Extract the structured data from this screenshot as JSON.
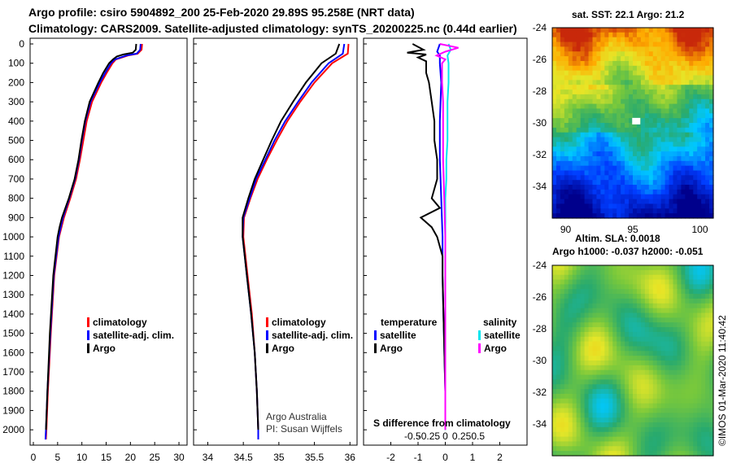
{
  "header": {
    "title_line1": "Argo profile: csiro 5904892_200 25-Feb-2020 29.89S 95.258E (NRT data)",
    "title_line2": "Climatology: CARS2009. Satellite-adjusted climatology: synTS_20200225.nc (0.44d earlier)"
  },
  "colors": {
    "climatology": "#ff0000",
    "satellite_adj": "#0000ff",
    "argo": "#000000",
    "salinity_satellite": "#00e5ee",
    "salinity_argo": "#ff00ff"
  },
  "legend": {
    "climatology": "climatology",
    "satellite_adj": "satellite-adj. clim.",
    "argo": "Argo",
    "temperature_header": "temperature",
    "salinity_header": "salinity",
    "satellite": "satellite"
  },
  "chart_data": [
    {
      "type": "line",
      "name": "temperature",
      "xlim": [
        0,
        31
      ],
      "ylim": [
        2050,
        0
      ],
      "x_ticks": [
        0,
        5,
        10,
        15,
        20,
        25,
        30
      ],
      "y_ticks": [
        0,
        100,
        200,
        300,
        400,
        500,
        600,
        700,
        800,
        900,
        1000,
        1100,
        1200,
        1300,
        1400,
        1500,
        1600,
        1700,
        1800,
        1900,
        2000
      ],
      "xlabel": "",
      "ylabel": "",
      "series": [
        {
          "name": "climatology",
          "color_key": "climatology",
          "depth": [
            0,
            30,
            50,
            60,
            80,
            100,
            150,
            200,
            300,
            400,
            500,
            600,
            700,
            800,
            900,
            1000,
            1200,
            1500,
            1800,
            2000,
            2050
          ],
          "values": [
            22.4,
            22.3,
            21.5,
            19.5,
            17.0,
            16.3,
            15.1,
            14.0,
            12.1,
            11.0,
            10.3,
            9.6,
            8.8,
            7.6,
            6.3,
            5.3,
            4.3,
            3.6,
            3.0,
            2.7,
            2.6
          ]
        },
        {
          "name": "satellite-adj. clim.",
          "color_key": "satellite_adj",
          "depth": [
            0,
            30,
            50,
            60,
            80,
            100,
            150,
            200,
            300,
            400,
            500,
            600,
            700,
            800,
            900,
            1000,
            1200,
            1500,
            1800,
            2000,
            2050
          ],
          "values": [
            22.1,
            22.0,
            21.3,
            19.2,
            16.8,
            16.0,
            14.8,
            13.7,
            11.8,
            10.7,
            10.0,
            9.4,
            8.6,
            7.4,
            6.1,
            5.2,
            4.2,
            3.5,
            2.9,
            2.6,
            2.5
          ]
        },
        {
          "name": "Argo",
          "color_key": "argo",
          "depth": [
            0,
            30,
            45,
            55,
            65,
            80,
            100,
            150,
            200,
            300,
            400,
            500,
            600,
            700,
            800,
            900,
            950,
            1000,
            1200,
            1500,
            1800,
            2000
          ],
          "values": [
            21.2,
            21.1,
            20.5,
            18.5,
            17.2,
            16.4,
            15.6,
            14.4,
            13.4,
            11.6,
            10.6,
            9.9,
            9.3,
            8.5,
            7.3,
            5.9,
            5.4,
            5.0,
            4.1,
            3.4,
            2.9,
            2.6
          ]
        }
      ]
    },
    {
      "type": "line",
      "name": "salinity",
      "xlim": [
        33.8,
        36.1
      ],
      "ylim": [
        2050,
        0
      ],
      "x_ticks": [
        34,
        34.5,
        35,
        35.5,
        36
      ],
      "x_tick_labels": [
        "34",
        "34.5",
        "35",
        "35.5",
        "36"
      ],
      "series": [
        {
          "name": "climatology",
          "color_key": "climatology",
          "depth": [
            0,
            50,
            100,
            200,
            300,
            400,
            500,
            600,
            700,
            800,
            900,
            1000,
            1200,
            1400,
            1600,
            1800,
            2000,
            2050
          ],
          "values": [
            35.98,
            35.97,
            35.75,
            35.5,
            35.3,
            35.12,
            34.97,
            34.83,
            34.7,
            34.6,
            34.51,
            34.5,
            34.56,
            34.62,
            34.66,
            34.69,
            34.71,
            34.71
          ]
        },
        {
          "name": "satellite-adj. clim.",
          "color_key": "satellite_adj",
          "depth": [
            0,
            50,
            100,
            200,
            300,
            400,
            500,
            600,
            700,
            800,
            900,
            1000,
            1200,
            1400,
            1600,
            1800,
            2000,
            2050
          ],
          "values": [
            35.92,
            35.9,
            35.7,
            35.46,
            35.27,
            35.09,
            34.94,
            34.81,
            34.68,
            34.59,
            34.5,
            34.49,
            34.55,
            34.61,
            34.66,
            34.69,
            34.71,
            34.71
          ]
        },
        {
          "name": "Argo",
          "color_key": "argo",
          "depth": [
            0,
            50,
            100,
            200,
            300,
            400,
            500,
            600,
            700,
            800,
            900,
            1000,
            1200,
            1400,
            1600,
            1800,
            2000
          ],
          "values": [
            35.85,
            35.8,
            35.6,
            35.38,
            35.2,
            35.03,
            34.9,
            34.78,
            34.66,
            34.57,
            34.49,
            34.49,
            34.55,
            34.61,
            34.66,
            34.69,
            34.71
          ]
        }
      ]
    },
    {
      "type": "line",
      "name": "differences",
      "title": "S difference from climatology",
      "xlim": [
        -3.0,
        3.0
      ],
      "ylim": [
        2050,
        0
      ],
      "temperature_ticks": [
        -2,
        -1,
        0,
        1,
        2
      ],
      "temperature_tick_labels": [
        "-2",
        "-1",
        "0",
        "1",
        "2"
      ],
      "salinity_ticks": [
        -0.5,
        -0.25,
        0,
        0.25,
        0.5
      ],
      "salinity_tick_labels": [
        "-0.5",
        "-0.25",
        "0",
        "0.25",
        "0.5"
      ],
      "series": [
        {
          "name": "temperature satellite",
          "color_key": "satellite_adj",
          "depth": [
            0,
            40,
            60,
            100,
            200,
            400,
            600,
            800,
            1000,
            1200,
            1500,
            1800,
            2000
          ],
          "values": [
            -0.2,
            -0.3,
            -0.2,
            -0.2,
            -0.15,
            -0.2,
            -0.2,
            -0.15,
            -0.1,
            -0.1,
            -0.05,
            0.0,
            0.0
          ]
        },
        {
          "name": "temperature Argo",
          "color_key": "argo",
          "depth": [
            0,
            30,
            45,
            55,
            70,
            90,
            150,
            200,
            300,
            400,
            500,
            600,
            700,
            800,
            850,
            900,
            950,
            1000,
            1100,
            1200,
            1500,
            1800,
            2000
          ],
          "values": [
            -1.2,
            -0.8,
            -1.4,
            -0.7,
            -1.0,
            -0.7,
            -0.7,
            -0.6,
            -0.5,
            -0.4,
            -0.4,
            -0.3,
            -0.3,
            -0.5,
            -0.2,
            -0.9,
            -0.5,
            -0.3,
            -0.1,
            -0.1,
            -0.05,
            0.0,
            0.0
          ]
        },
        {
          "name": "salinity satellite",
          "color_key": "salinity_satellite",
          "depth": [
            0,
            30,
            60,
            100,
            200,
            300,
            400,
            500,
            600,
            700,
            800,
            1000,
            1200,
            1500,
            1800,
            2000
          ],
          "values": [
            0.03,
            0.05,
            0.02,
            0.03,
            0.03,
            0.02,
            0.02,
            0.02,
            0.01,
            0.01,
            0.0,
            0.0,
            0.0,
            0.0,
            0.0,
            0.0
          ]
        },
        {
          "name": "salinity Argo",
          "color_key": "salinity_argo",
          "depth": [
            0,
            20,
            40,
            60,
            80,
            100,
            200,
            300,
            400,
            500,
            600,
            800,
            1000,
            1200,
            1500,
            1800,
            2000
          ],
          "values": [
            -0.05,
            0.12,
            0.0,
            -0.08,
            0.0,
            -0.03,
            -0.03,
            -0.02,
            -0.02,
            -0.02,
            -0.02,
            -0.01,
            0.0,
            0.0,
            0.0,
            0.0,
            0.0
          ]
        }
      ]
    },
    {
      "type": "heatmap",
      "name": "sea surface temperature",
      "title": "sat. SST: 22.1 Argo: 21.2",
      "x_ticks": [
        90,
        95,
        100
      ],
      "y_ticks": [
        -24,
        -26,
        -28,
        -30,
        -32,
        -34
      ],
      "xlim": [
        89,
        101
      ],
      "ylim": [
        -36,
        -24
      ],
      "marker": {
        "lon": 95.258,
        "lat": -29.89
      }
    },
    {
      "type": "heatmap",
      "name": "sea level anomaly",
      "title_line1": "Altim. SLA: 0.0018",
      "title_line2": "Argo h1000: -0.037 h2000: -0.051",
      "y_ticks": [
        -24,
        -26,
        -28,
        -30,
        -32,
        -34
      ],
      "ylim": [
        -36,
        -24
      ]
    }
  ],
  "credits": {
    "argo_australia": "Argo Australia",
    "pi": "PI: Susan Wijffels",
    "imos": "©IMOS 01-Mar-2020 11:40:42"
  }
}
